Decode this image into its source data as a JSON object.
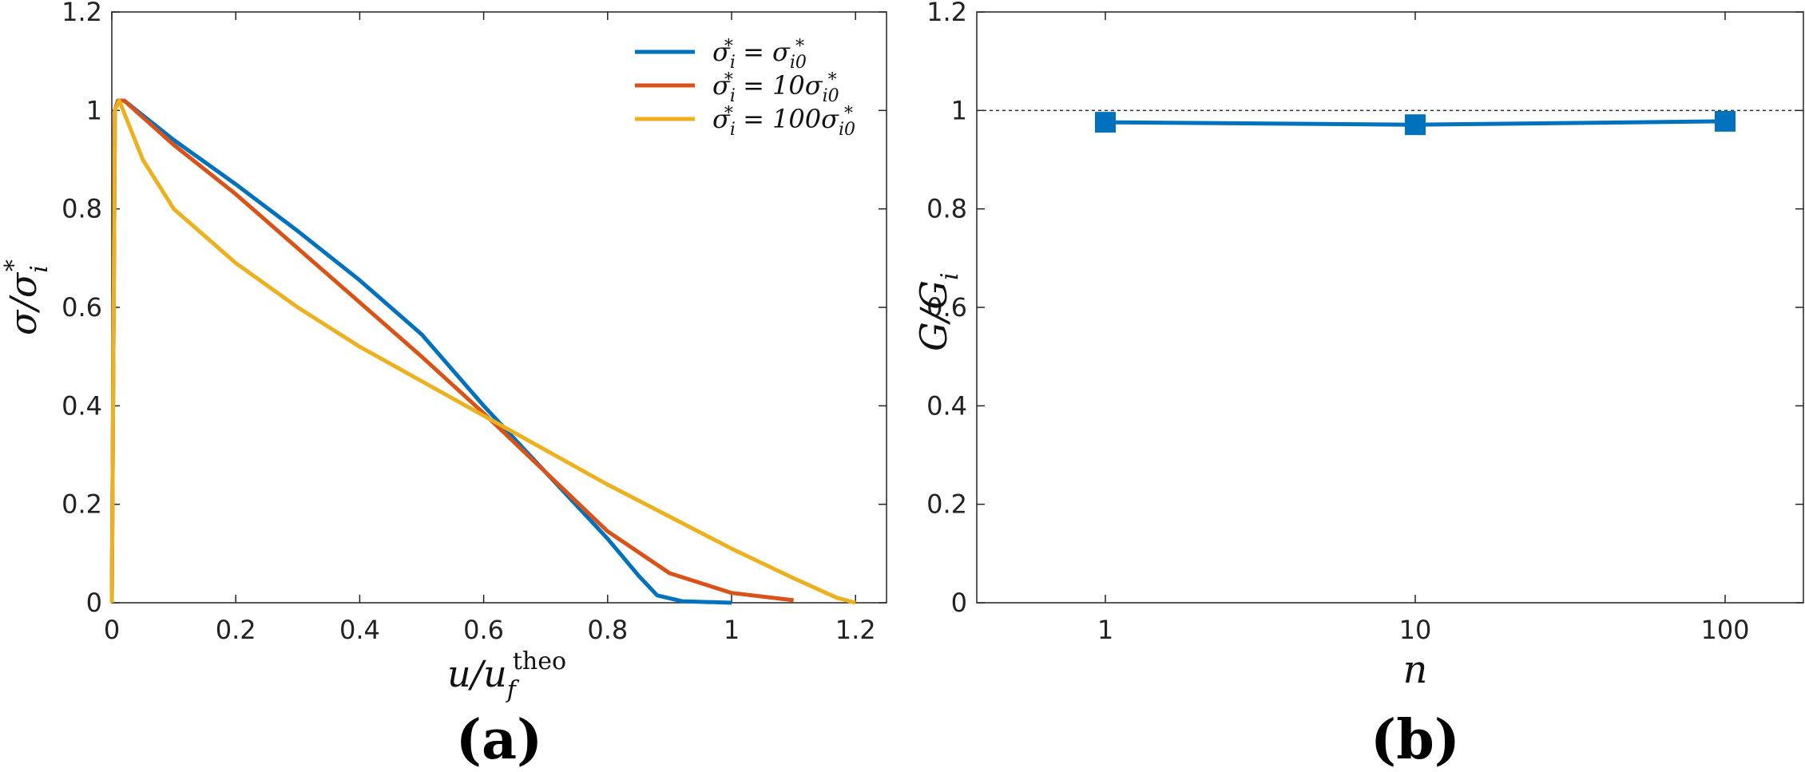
{
  "chart_data": [
    {
      "type": "line",
      "panel_label": "(a)",
      "xlabel": "u/u_f^theo",
      "ylabel": "σ/σ_i^*",
      "xlim": [
        0,
        1.25
      ],
      "ylim": [
        0,
        1.2
      ],
      "xticks": [
        "0",
        "0.2",
        "0.4",
        "0.6",
        "0.8",
        "1",
        "1.2"
      ],
      "yticks": [
        "0",
        "0.2",
        "0.4",
        "0.6",
        "0.8",
        "1",
        "1.2"
      ],
      "grid": false,
      "legend": "top-right",
      "series": [
        {
          "name": "σ_i^* = σ_i0^*",
          "color": "#0072BD",
          "points": [
            [
              0,
              0
            ],
            [
              0.005,
              1.0
            ],
            [
              0.01,
              1.02
            ],
            [
              0.02,
              1.02
            ],
            [
              0.1,
              0.94
            ],
            [
              0.2,
              0.85
            ],
            [
              0.3,
              0.755
            ],
            [
              0.4,
              0.655
            ],
            [
              0.5,
              0.545
            ],
            [
              0.6,
              0.4
            ],
            [
              0.7,
              0.265
            ],
            [
              0.8,
              0.13
            ],
            [
              0.85,
              0.055
            ],
            [
              0.88,
              0.015
            ],
            [
              0.92,
              0.003
            ],
            [
              1.0,
              0.0
            ]
          ]
        },
        {
          "name": "σ_i^* = 10σ_i0^*",
          "color": "#D95319",
          "points": [
            [
              0,
              0
            ],
            [
              0.005,
              1.0
            ],
            [
              0.01,
              1.02
            ],
            [
              0.02,
              1.02
            ],
            [
              0.1,
              0.93
            ],
            [
              0.2,
              0.83
            ],
            [
              0.3,
              0.72
            ],
            [
              0.4,
              0.61
            ],
            [
              0.5,
              0.5
            ],
            [
              0.6,
              0.385
            ],
            [
              0.7,
              0.265
            ],
            [
              0.8,
              0.145
            ],
            [
              0.9,
              0.06
            ],
            [
              1.0,
              0.02
            ],
            [
              1.1,
              0.005
            ]
          ]
        },
        {
          "name": "σ_i^* = 100σ_i0^*",
          "color": "#EDB120",
          "points": [
            [
              0,
              0
            ],
            [
              0.005,
              1.0
            ],
            [
              0.012,
              1.02
            ],
            [
              0.05,
              0.9
            ],
            [
              0.1,
              0.8
            ],
            [
              0.2,
              0.69
            ],
            [
              0.3,
              0.6
            ],
            [
              0.4,
              0.52
            ],
            [
              0.5,
              0.45
            ],
            [
              0.6,
              0.38
            ],
            [
              0.7,
              0.31
            ],
            [
              0.8,
              0.24
            ],
            [
              0.9,
              0.175
            ],
            [
              1.0,
              0.11
            ],
            [
              1.1,
              0.05
            ],
            [
              1.17,
              0.01
            ],
            [
              1.2,
              0.0
            ]
          ]
        }
      ]
    },
    {
      "type": "line",
      "panel_label": "(b)",
      "xlabel": "n",
      "ylabel": "G/G_i",
      "ylim": [
        0,
        1.2
      ],
      "categories": [
        "1",
        "10",
        "100"
      ],
      "yticks": [
        "0",
        "0.2",
        "0.4",
        "0.6",
        "0.8",
        "1",
        "1.2"
      ],
      "grid": false,
      "reference_line": 1.0,
      "series": [
        {
          "color": "#0072BD",
          "marker": "square",
          "values": [
            0.976,
            0.971,
            0.978
          ]
        }
      ]
    }
  ]
}
